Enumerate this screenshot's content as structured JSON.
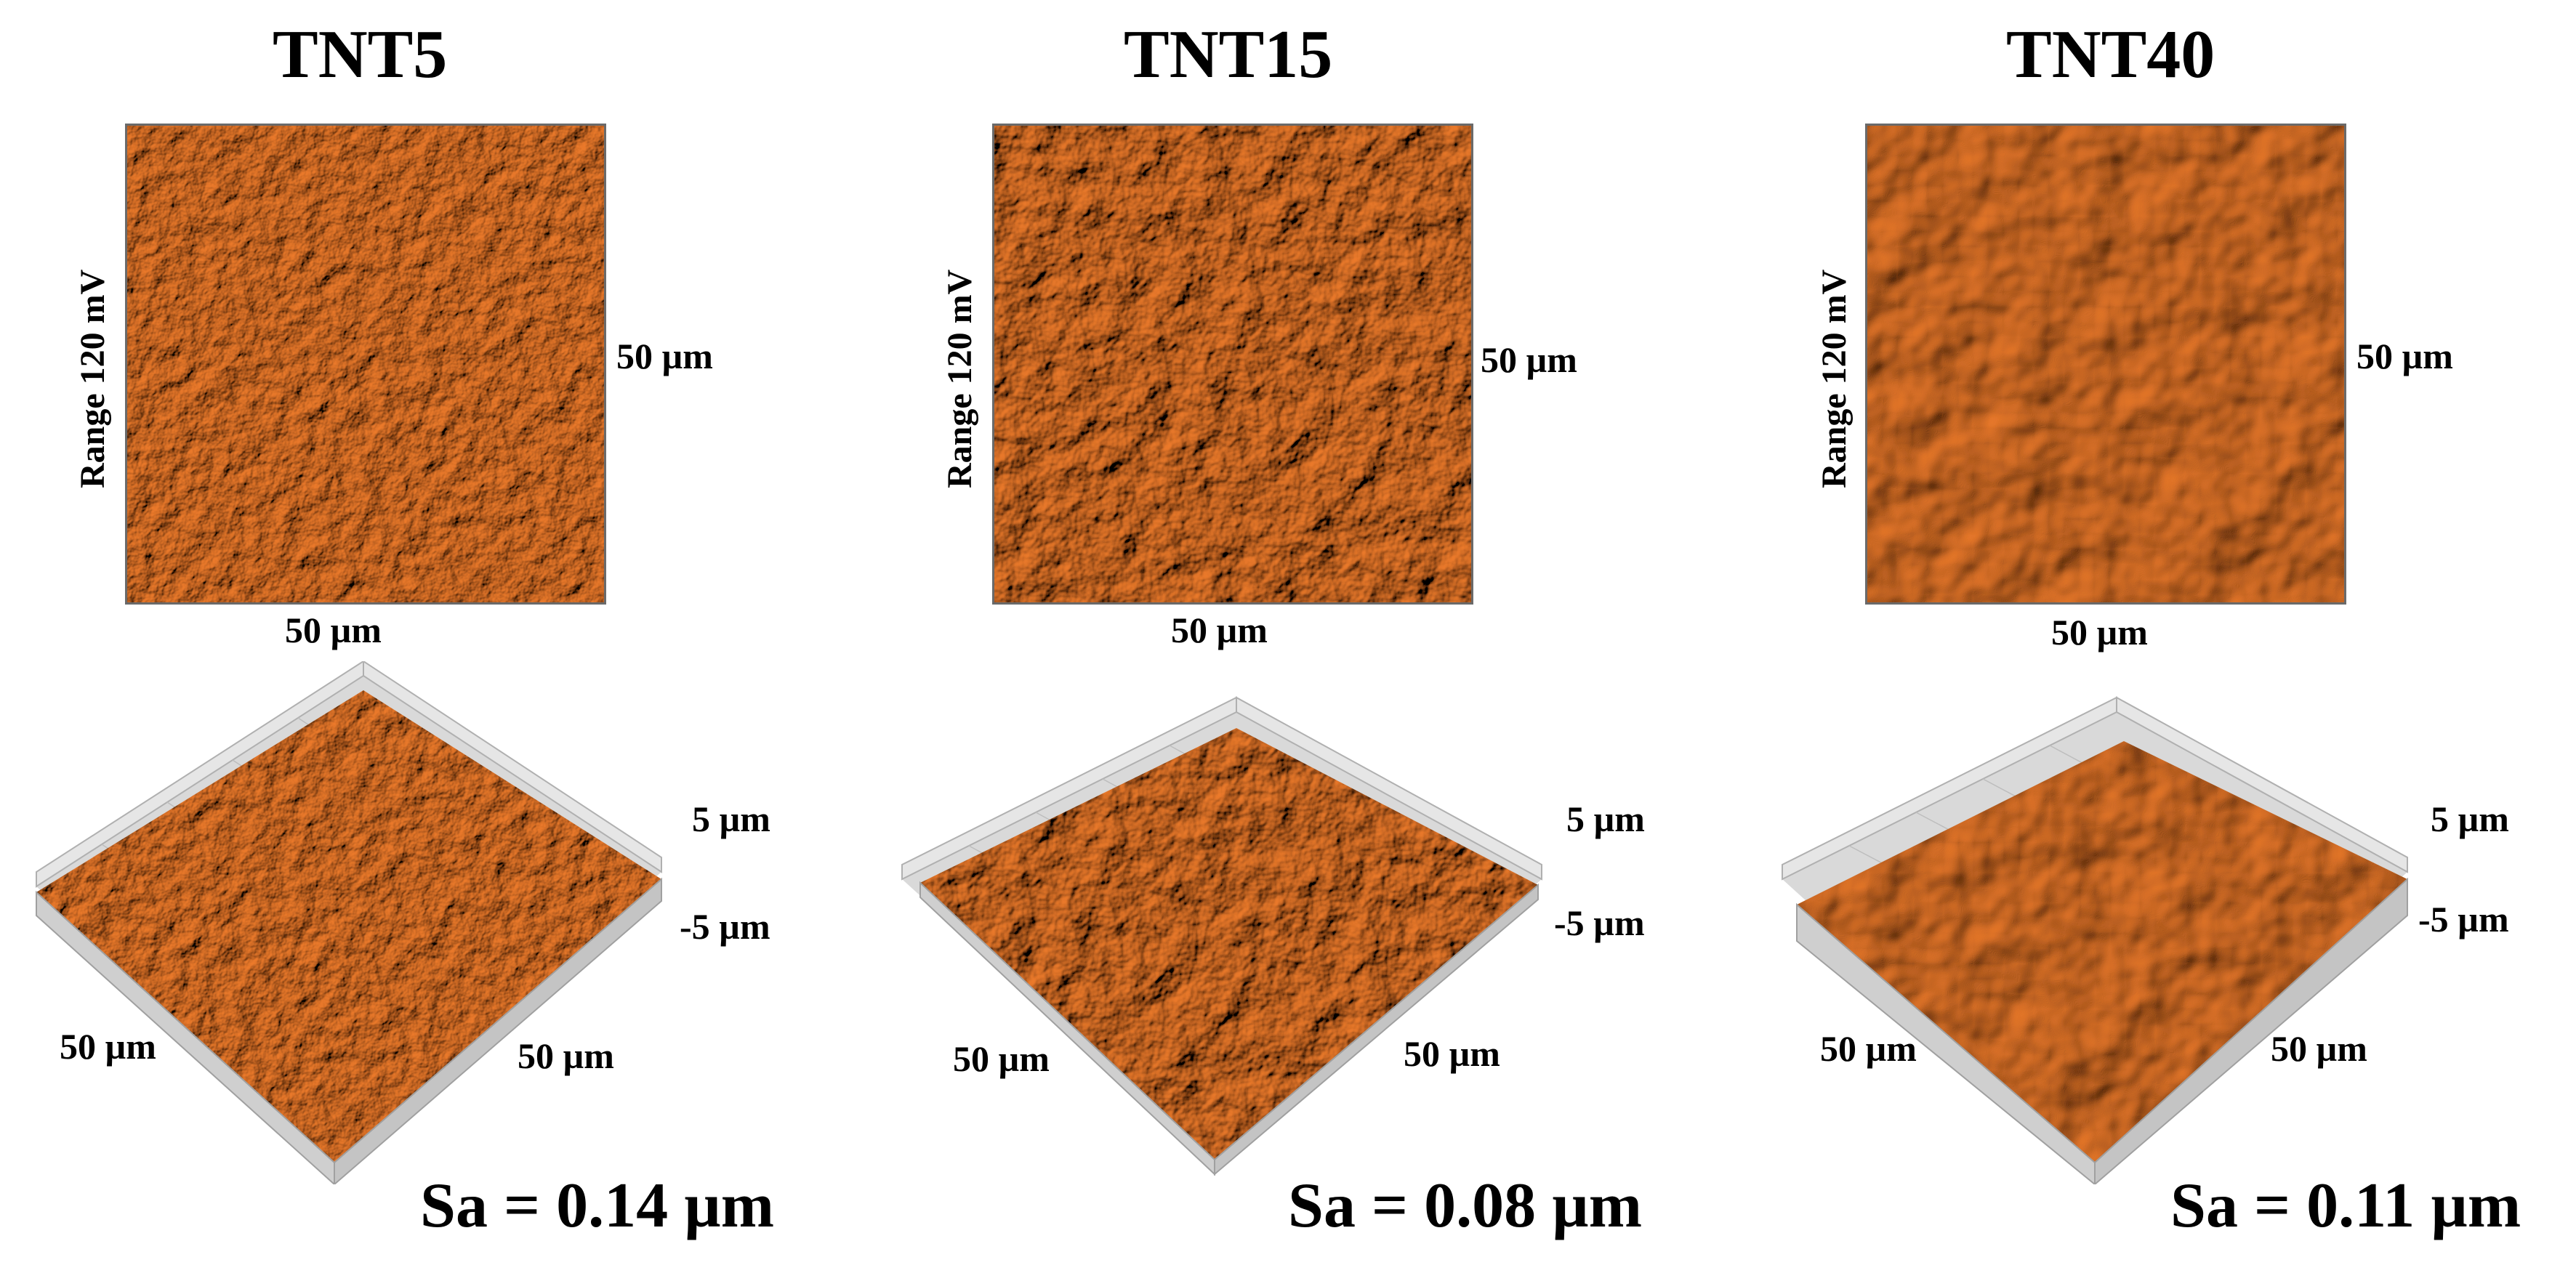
{
  "colors": {
    "surface": "#e8782a",
    "surface_light": "#ffb070",
    "surface_dark": "#5a2606",
    "box_grid": "#b0b0b0",
    "box_face": "#d9d9d9"
  },
  "panels": [
    {
      "title": "TNT5",
      "range_label": "Range 120 mV",
      "x_scale": "50 µm",
      "y_scale": "50 µm",
      "z_top": "5 µm",
      "z_bottom": "-5 µm",
      "axis_left": "50 µm",
      "axis_right": "50 µm",
      "sa": "Sa = 0.14 µm"
    },
    {
      "title": "TNT15",
      "range_label": "Range 120 mV",
      "x_scale": "50 µm",
      "y_scale": "50 µm",
      "z_top": "5 µm",
      "z_bottom": "-5 µm",
      "axis_left": "50 µm",
      "axis_right": "50 µm",
      "sa": "Sa = 0.08 µm"
    },
    {
      "title": "TNT40",
      "range_label": "Range 120 mV",
      "x_scale": "50 µm",
      "y_scale": "50 µm",
      "z_top": "5 µm",
      "z_bottom": "-5 µm",
      "axis_left": "50 µm",
      "axis_right": "50 µm",
      "sa": "Sa = 0.11 µm"
    }
  ]
}
